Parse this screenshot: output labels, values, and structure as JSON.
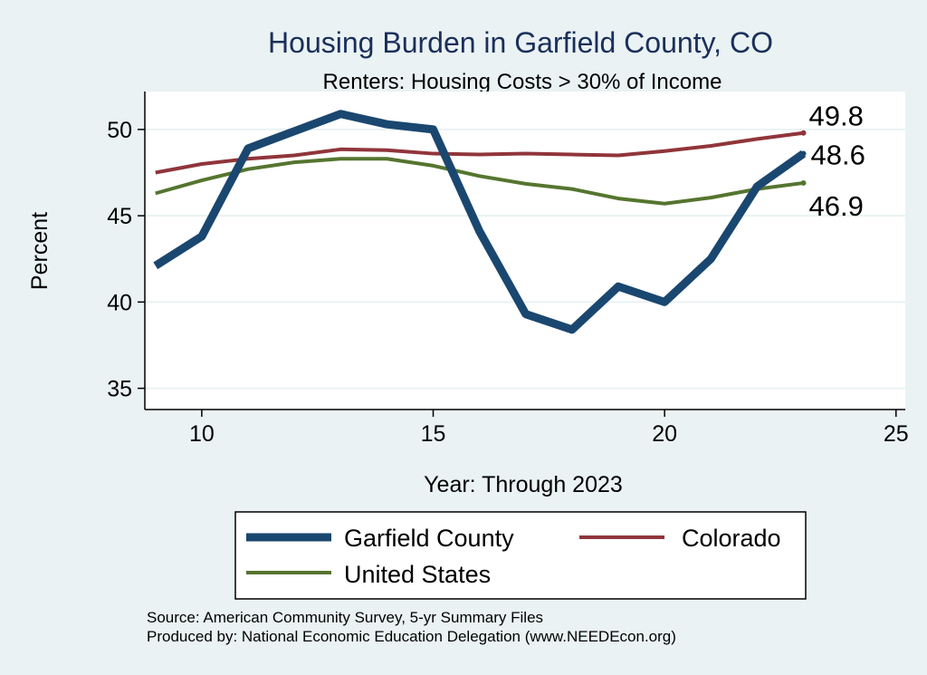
{
  "chart_data": {
    "type": "line",
    "title": "Housing Burden in Garfield County, CO",
    "subtitle": "Renters: Housing Costs > 30% of Income",
    "xlabel": "Year: Through 2023",
    "ylabel": "Percent",
    "xlim": [
      8.77,
      25.2
    ],
    "ylim": [
      33.77,
      52.2
    ],
    "xticks": [
      10,
      15,
      20,
      25
    ],
    "yticks": [
      35,
      40,
      45,
      50
    ],
    "grid": true,
    "x": [
      9,
      10,
      11,
      12,
      13,
      14,
      15,
      16,
      17,
      18,
      19,
      20,
      21,
      22,
      23
    ],
    "series": [
      {
        "name": "Garfield County",
        "color": "#1a476f",
        "width": 9,
        "values": [
          42.1,
          43.8,
          48.9,
          49.9,
          50.9,
          50.3,
          50.0,
          44.1,
          39.3,
          38.4,
          40.9,
          40.0,
          42.5,
          46.7,
          48.6
        ],
        "end_label": "48.6"
      },
      {
        "name": "Colorado",
        "color": "#90353b",
        "width": 4,
        "values": [
          47.5,
          48.0,
          48.3,
          48.5,
          48.85,
          48.8,
          48.6,
          48.55,
          48.6,
          48.55,
          48.5,
          48.75,
          49.05,
          49.45,
          49.8
        ],
        "end_label": "49.8"
      },
      {
        "name": "United States",
        "color": "#55752f",
        "width": 4,
        "values": [
          46.3,
          47.05,
          47.7,
          48.1,
          48.3,
          48.3,
          47.9,
          47.3,
          46.85,
          46.55,
          46.0,
          45.7,
          46.05,
          46.55,
          46.9
        ],
        "end_label": "46.9"
      }
    ],
    "legend_placement": "bottom",
    "notes": [
      "Source: American Community Survey, 5-yr Summary Files",
      "Produced by: National Economic Education Delegation (www.NEEDEcon.org)"
    ]
  }
}
